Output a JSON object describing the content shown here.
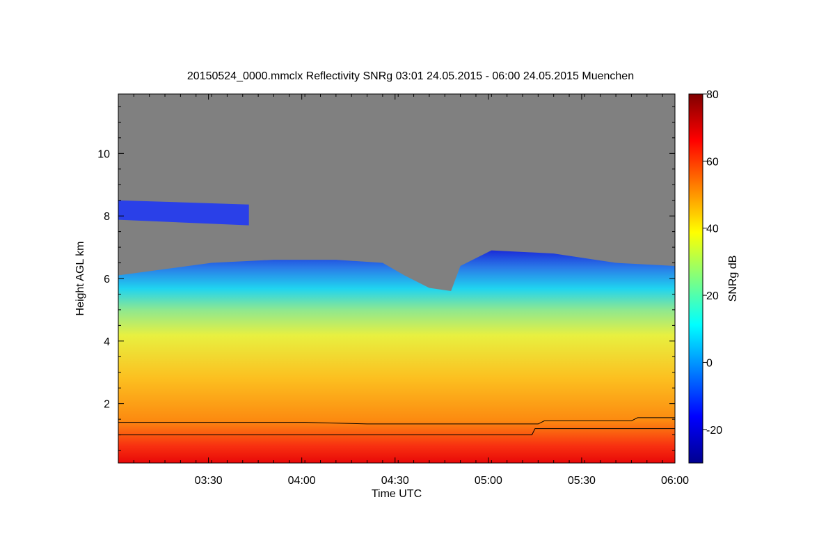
{
  "chart_data": {
    "type": "heatmap",
    "title": "20150524_0000.mmclx Reflectivity SNRg   03:01 24.05.2015 - 06:00 24.05.2015 Muenchen",
    "xlabel": "Time UTC",
    "ylabel": "Height AGL km",
    "x_range": [
      "03:01",
      "06:00"
    ],
    "x_ticks": [
      "03:30",
      "04:00",
      "04:30",
      "05:00",
      "05:30",
      "06:00"
    ],
    "x_tick_minutes": [
      29,
      59,
      89,
      119,
      149,
      179
    ],
    "ylim": [
      0.1,
      11.9
    ],
    "y_ticks": [
      2,
      4,
      6,
      8,
      10
    ],
    "colorbar": {
      "label": "SNRg dB",
      "range": [
        -30,
        80
      ],
      "ticks": [
        -20,
        0,
        20,
        40,
        60,
        80
      ],
      "colormap": "jet"
    },
    "background_color": "#808080",
    "echo_top_km": [
      {
        "minute": 0,
        "km": 6.1
      },
      {
        "minute": 15,
        "km": 6.3
      },
      {
        "minute": 30,
        "km": 6.5
      },
      {
        "minute": 50,
        "km": 6.6
      },
      {
        "minute": 70,
        "km": 6.6
      },
      {
        "minute": 85,
        "km": 6.5
      },
      {
        "minute": 92,
        "km": 6.1
      },
      {
        "minute": 100,
        "km": 5.7
      },
      {
        "minute": 107,
        "km": 5.6
      },
      {
        "minute": 110,
        "km": 6.4
      },
      {
        "minute": 120,
        "km": 6.9
      },
      {
        "minute": 140,
        "km": 6.8
      },
      {
        "minute": 160,
        "km": 6.5
      },
      {
        "minute": 179,
        "km": 6.4
      }
    ],
    "upper_layer": {
      "start_minute": 0,
      "end_minute": 42,
      "km": [
        7.7,
        8.5
      ]
    },
    "cloud_base_line_km": [
      {
        "minute": 0,
        "km": 1.4
      },
      {
        "minute": 60,
        "km": 1.4
      },
      {
        "minute": 80,
        "km": 1.35
      },
      {
        "minute": 135,
        "km": 1.35
      },
      {
        "minute": 137,
        "km": 1.45
      },
      {
        "minute": 165,
        "km": 1.45
      },
      {
        "minute": 167,
        "km": 1.55
      },
      {
        "minute": 179,
        "km": 1.55
      }
    ],
    "lower_line_km": [
      {
        "minute": 0,
        "km": 1.0
      },
      {
        "minute": 133,
        "km": 1.0
      },
      {
        "minute": 134,
        "km": 1.2
      },
      {
        "minute": 179,
        "km": 1.2
      }
    ]
  }
}
